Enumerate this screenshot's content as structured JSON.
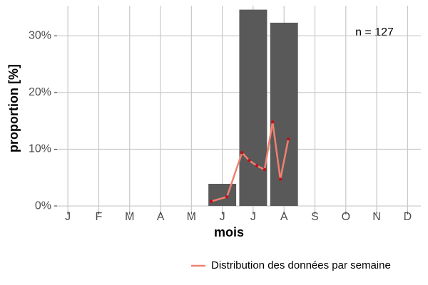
{
  "chart_data": {
    "type": "bar",
    "xlabel": "mois",
    "ylabel": "proportion [%]",
    "annotation": "n = 127",
    "xlim": [
      0.65,
      12.43
    ],
    "ylim": [
      -1,
      35.3
    ],
    "xticks": [
      {
        "value": 1,
        "label": "J"
      },
      {
        "value": 2,
        "label": "F"
      },
      {
        "value": 3,
        "label": "M"
      },
      {
        "value": 4,
        "label": "A"
      },
      {
        "value": 5,
        "label": "M"
      },
      {
        "value": 6,
        "label": "J"
      },
      {
        "value": 7,
        "label": "J"
      },
      {
        "value": 8,
        "label": "A"
      },
      {
        "value": 9,
        "label": "S"
      },
      {
        "value": 10,
        "label": "O"
      },
      {
        "value": 11,
        "label": "N"
      },
      {
        "value": 12,
        "label": "D"
      }
    ],
    "yticks": [
      {
        "value": 0,
        "label": "0%"
      },
      {
        "value": 10,
        "label": "10%"
      },
      {
        "value": 20,
        "label": "20%"
      },
      {
        "value": 30,
        "label": "30%"
      }
    ],
    "grid": true,
    "bars": {
      "x": [
        6,
        7,
        8
      ],
      "values": [
        3.9,
        34.6,
        32.3
      ],
      "color": "#595959"
    },
    "series": [
      {
        "name": "Distribution des données par semaine",
        "color": "#f08070",
        "point_color": "#c0101a",
        "x": [
          5.64,
          6.15,
          6.64,
          6.87,
          7.12,
          7.37,
          7.63,
          7.88,
          8.14
        ],
        "values": [
          0.8,
          1.6,
          9.4,
          8.0,
          7.1,
          6.4,
          14.8,
          4.7,
          11.8
        ]
      }
    ],
    "legend": "bottom"
  }
}
